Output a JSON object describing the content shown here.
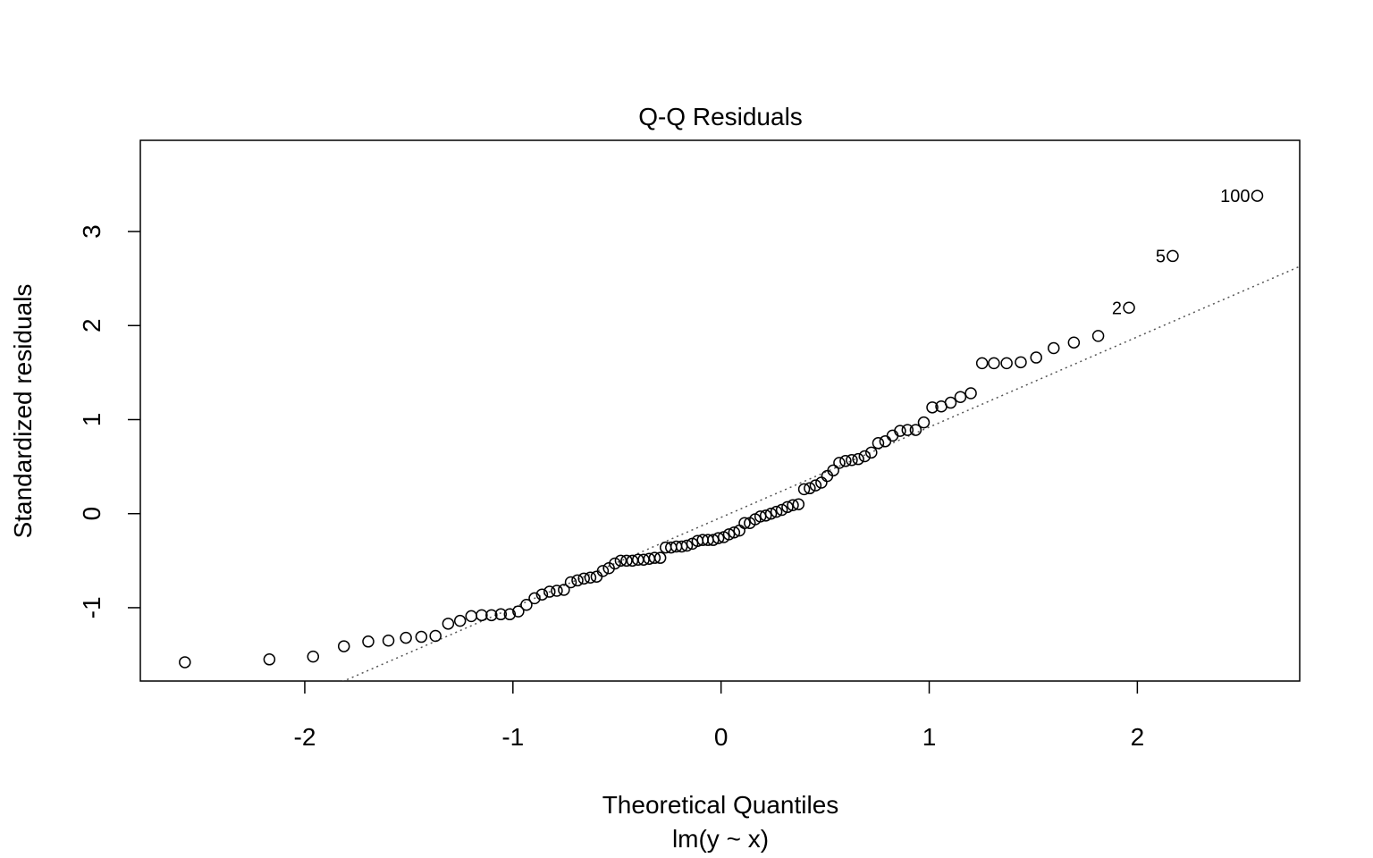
{
  "chart_data": {
    "type": "scatter",
    "title": "Q-Q Residuals",
    "x_label": "Theoretical Quantiles",
    "subtitle": "lm(y ~ x)",
    "y_label": "Standardized residuals",
    "x": [
      -2.576,
      -2.17,
      -1.96,
      -1.812,
      -1.695,
      -1.598,
      -1.514,
      -1.44,
      -1.372,
      -1.311,
      -1.254,
      -1.2,
      -1.15,
      -1.103,
      -1.058,
      -1.015,
      -0.974,
      -0.935,
      -0.896,
      -0.86,
      -0.824,
      -0.789,
      -0.755,
      -0.722,
      -0.69,
      -0.659,
      -0.628,
      -0.598,
      -0.568,
      -0.539,
      -0.51,
      -0.482,
      -0.454,
      -0.426,
      -0.399,
      -0.372,
      -0.345,
      -0.319,
      -0.292,
      -0.266,
      -0.24,
      -0.215,
      -0.189,
      -0.164,
      -0.138,
      -0.113,
      -0.088,
      -0.063,
      -0.038,
      -0.013,
      0.013,
      0.038,
      0.063,
      0.088,
      0.113,
      0.138,
      0.164,
      0.189,
      0.215,
      0.24,
      0.266,
      0.292,
      0.319,
      0.345,
      0.372,
      0.399,
      0.426,
      0.454,
      0.482,
      0.51,
      0.539,
      0.568,
      0.598,
      0.628,
      0.659,
      0.69,
      0.722,
      0.755,
      0.789,
      0.824,
      0.86,
      0.896,
      0.935,
      0.974,
      1.015,
      1.058,
      1.103,
      1.15,
      1.2,
      1.254,
      1.311,
      1.372,
      1.44,
      1.514,
      1.598,
      1.695,
      1.812,
      1.96,
      2.17,
      2.576
    ],
    "values": [
      -1.58,
      -1.55,
      -1.52,
      -1.41,
      -1.36,
      -1.35,
      -1.32,
      -1.31,
      -1.3,
      -1.17,
      -1.14,
      -1.09,
      -1.08,
      -1.08,
      -1.07,
      -1.07,
      -1.04,
      -0.97,
      -0.9,
      -0.86,
      -0.83,
      -0.82,
      -0.81,
      -0.73,
      -0.71,
      -0.69,
      -0.68,
      -0.67,
      -0.61,
      -0.58,
      -0.53,
      -0.5,
      -0.5,
      -0.5,
      -0.49,
      -0.49,
      -0.48,
      -0.47,
      -0.47,
      -0.36,
      -0.36,
      -0.35,
      -0.35,
      -0.34,
      -0.32,
      -0.29,
      -0.28,
      -0.28,
      -0.28,
      -0.26,
      -0.25,
      -0.22,
      -0.2,
      -0.18,
      -0.1,
      -0.1,
      -0.06,
      -0.03,
      -0.02,
      0.0,
      0.02,
      0.04,
      0.07,
      0.09,
      0.1,
      0.26,
      0.27,
      0.3,
      0.33,
      0.4,
      0.46,
      0.54,
      0.56,
      0.57,
      0.58,
      0.61,
      0.65,
      0.75,
      0.77,
      0.83,
      0.88,
      0.89,
      0.89,
      0.97,
      1.13,
      1.14,
      1.18,
      1.24,
      1.28,
      1.6,
      1.6,
      1.6,
      1.61,
      1.66,
      1.76,
      1.82,
      1.89,
      2.19,
      2.74,
      3.38
    ],
    "point_labels": [
      null,
      null,
      null,
      null,
      null,
      null,
      null,
      null,
      null,
      null,
      null,
      null,
      null,
      null,
      null,
      null,
      null,
      null,
      null,
      null,
      null,
      null,
      null,
      null,
      null,
      null,
      null,
      null,
      null,
      null,
      null,
      null,
      null,
      null,
      null,
      null,
      null,
      null,
      null,
      null,
      null,
      null,
      null,
      null,
      null,
      null,
      null,
      null,
      null,
      null,
      null,
      null,
      null,
      null,
      null,
      null,
      null,
      null,
      null,
      null,
      null,
      null,
      null,
      null,
      null,
      null,
      null,
      null,
      null,
      null,
      null,
      null,
      null,
      null,
      null,
      null,
      null,
      null,
      null,
      null,
      null,
      null,
      null,
      null,
      null,
      null,
      null,
      null,
      null,
      null,
      null,
      null,
      null,
      null,
      null,
      null,
      null,
      "2",
      "5",
      "100"
    ],
    "reference_line": {
      "intercept": -0.04,
      "slope": 0.96
    },
    "xlim": [
      -2.79,
      2.78
    ],
    "ylim": [
      -1.78,
      3.97
    ],
    "xticks": [
      -2,
      -1,
      0,
      1,
      2
    ],
    "yticks": [
      -1,
      0,
      1,
      2,
      3
    ],
    "grid": false,
    "color": "#000000"
  }
}
